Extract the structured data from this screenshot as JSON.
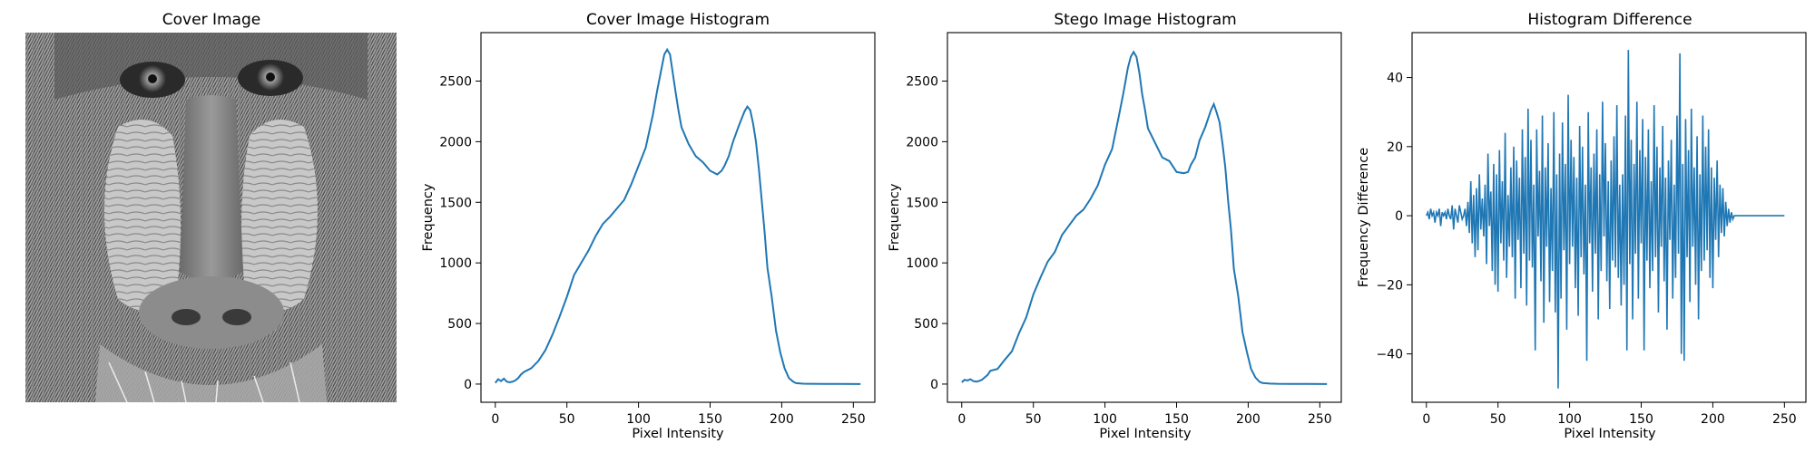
{
  "chart_data": [
    {
      "type": "image",
      "title": "Cover Image",
      "image_subject": "grayscale mandrill (baboon) face"
    },
    {
      "type": "line",
      "title": "Cover Image Histogram",
      "xlabel": "Pixel Intensity",
      "ylabel": "Frequency",
      "xlim": [
        -10,
        265
      ],
      "ylim": [
        -150,
        2900
      ],
      "xticks": [
        0,
        50,
        100,
        150,
        200,
        250
      ],
      "yticks": [
        0,
        500,
        1000,
        1500,
        2000,
        2500
      ],
      "color": "#1f77b4",
      "x": [
        0,
        2,
        4,
        6,
        8,
        10,
        12,
        14,
        16,
        18,
        20,
        25,
        30,
        35,
        40,
        45,
        50,
        55,
        60,
        65,
        70,
        75,
        80,
        85,
        90,
        95,
        100,
        105,
        110,
        113,
        116,
        118,
        120,
        122,
        124,
        126,
        128,
        130,
        135,
        140,
        145,
        150,
        155,
        158,
        160,
        163,
        166,
        170,
        174,
        176,
        178,
        180,
        182,
        184,
        186,
        188,
        190,
        193,
        196,
        199,
        202,
        205,
        208,
        210,
        215,
        220,
        230,
        240,
        255
      ],
      "y": [
        10,
        40,
        25,
        45,
        20,
        15,
        20,
        30,
        50,
        80,
        100,
        130,
        190,
        280,
        410,
        560,
        720,
        900,
        1000,
        1100,
        1220,
        1320,
        1380,
        1450,
        1520,
        1650,
        1800,
        1950,
        2220,
        2420,
        2600,
        2720,
        2760,
        2720,
        2560,
        2400,
        2250,
        2120,
        1980,
        1880,
        1830,
        1760,
        1730,
        1760,
        1800,
        1880,
        2000,
        2130,
        2250,
        2290,
        2260,
        2150,
        2000,
        1780,
        1520,
        1260,
        960,
        720,
        440,
        260,
        130,
        50,
        20,
        8,
        3,
        2,
        1,
        1,
        0
      ]
    },
    {
      "type": "line",
      "title": "Stego Image Histogram",
      "xlabel": "Pixel Intensity",
      "ylabel": "Frequency",
      "xlim": [
        -10,
        265
      ],
      "ylim": [
        -150,
        2900
      ],
      "xticks": [
        0,
        50,
        100,
        150,
        200,
        250
      ],
      "yticks": [
        0,
        500,
        1000,
        1500,
        2000,
        2500
      ],
      "color": "#1f77b4",
      "x": [
        0,
        2,
        4,
        6,
        8,
        10,
        12,
        14,
        16,
        18,
        20,
        25,
        30,
        35,
        40,
        45,
        50,
        55,
        60,
        65,
        70,
        75,
        80,
        85,
        90,
        95,
        100,
        105,
        110,
        113,
        116,
        118,
        120,
        122,
        124,
        126,
        128,
        130,
        135,
        140,
        145,
        150,
        155,
        158,
        160,
        163,
        166,
        170,
        174,
        176,
        178,
        180,
        182,
        184,
        186,
        188,
        190,
        193,
        196,
        199,
        202,
        205,
        208,
        210,
        215,
        220,
        230,
        240,
        255
      ],
      "y": [
        15,
        35,
        30,
        40,
        25,
        20,
        25,
        35,
        55,
        75,
        110,
        125,
        200,
        270,
        420,
        550,
        740,
        880,
        1010,
        1090,
        1230,
        1310,
        1390,
        1440,
        1530,
        1640,
        1810,
        1940,
        2230,
        2410,
        2610,
        2700,
        2740,
        2700,
        2570,
        2390,
        2260,
        2110,
        1990,
        1870,
        1840,
        1750,
        1740,
        1750,
        1810,
        1870,
        2010,
        2120,
        2260,
        2310,
        2240,
        2160,
        1990,
        1790,
        1510,
        1270,
        950,
        730,
        430,
        270,
        125,
        55,
        18,
        9,
        4,
        2,
        1,
        1,
        0
      ]
    },
    {
      "type": "line",
      "title": "Histogram Difference",
      "xlabel": "Pixel Intensity",
      "ylabel": "Frequency Difference",
      "xlim": [
        -10,
        265
      ],
      "ylim": [
        -54,
        53
      ],
      "xticks": [
        0,
        50,
        100,
        150,
        200,
        250
      ],
      "yticks": [
        -40,
        -20,
        0,
        20,
        40
      ],
      "color": "#1f77b4",
      "x_start": 0,
      "values": [
        0,
        1,
        -1,
        2,
        0,
        1,
        -2,
        1,
        0,
        2,
        -3,
        1,
        0,
        1,
        -1,
        2,
        0,
        -1,
        3,
        -4,
        2,
        0,
        -2,
        3,
        1,
        -1,
        0,
        2,
        -3,
        4,
        -5,
        10,
        -8,
        6,
        -12,
        8,
        -10,
        12,
        -4,
        5,
        -6,
        9,
        -14,
        18,
        -3,
        7,
        -16,
        15,
        -20,
        12,
        -22,
        19,
        -8,
        10,
        -13,
        24,
        -18,
        6,
        -9,
        14,
        -12,
        20,
        -24,
        16,
        -7,
        11,
        -21,
        25,
        -11,
        17,
        -26,
        31,
        -13,
        22,
        -15,
        9,
        -39,
        25,
        -6,
        13,
        -19,
        29,
        -31,
        14,
        -9,
        21,
        -25,
        8,
        -16,
        30,
        -28,
        12,
        -50,
        18,
        -24,
        27,
        -10,
        15,
        -33,
        35,
        -14,
        22,
        -9,
        17,
        -21,
        11,
        -29,
        26,
        -12,
        20,
        -17,
        9,
        -42,
        30,
        -8,
        14,
        -22,
        18,
        -11,
        25,
        -30,
        12,
        -16,
        33,
        -6,
        21,
        -19,
        10,
        -27,
        16,
        -13,
        23,
        -15,
        32,
        -18,
        9,
        -26,
        12,
        -20,
        29,
        -39,
        48,
        -14,
        22,
        -30,
        15,
        -11,
        33,
        -24,
        19,
        -8,
        28,
        -39,
        17,
        -13,
        25,
        -21,
        10,
        -16,
        32,
        -12,
        20,
        -28,
        14,
        -9,
        26,
        -19,
        11,
        -33,
        16,
        -7,
        22,
        -24,
        9,
        -18,
        29,
        -11,
        47,
        -40,
        15,
        -42,
        28,
        -12,
        19,
        -25,
        31,
        -9,
        14,
        -20,
        23,
        -30,
        12,
        -16,
        29,
        -13,
        20,
        -10,
        25,
        -18,
        14,
        -21,
        11,
        -7,
        16,
        -12,
        9,
        -5,
        8,
        -6,
        4,
        -3,
        2,
        -2,
        1,
        -1,
        0,
        0,
        0,
        0,
        0,
        0,
        0,
        0,
        0,
        0,
        0,
        0,
        0,
        0,
        0,
        0,
        0,
        0,
        0,
        0,
        0,
        0,
        0,
        0,
        0,
        0,
        0,
        0,
        0,
        0,
        0,
        0,
        0,
        0,
        0,
        0
      ]
    }
  ]
}
